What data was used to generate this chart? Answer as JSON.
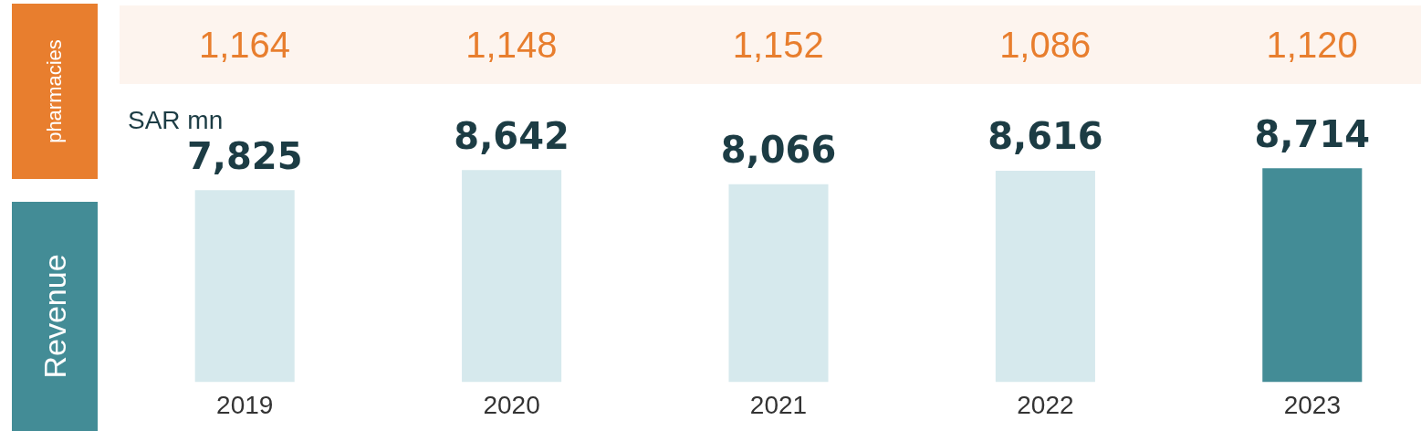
{
  "chart_data": [
    {
      "type": "other",
      "ylabel": "pharmacies",
      "values": [
        1164,
        1148,
        1152,
        1086,
        1120
      ],
      "value_labels": [
        "1,164",
        "1,148",
        "1,152",
        "1,086",
        "1,120"
      ],
      "color": "#e87e2e"
    },
    {
      "type": "bar",
      "title": "SAR mn",
      "ylabel": "Revenue",
      "categories": [
        "2019",
        "2020",
        "2021",
        "2022",
        "2023"
      ],
      "values": [
        7825,
        8642,
        8066,
        8616,
        8714
      ],
      "value_labels": [
        "7,825",
        "8,642",
        "8,066",
        "8,616",
        "8,714"
      ],
      "colors": [
        "#d6e9ed",
        "#d6e9ed",
        "#d6e9ed",
        "#d6e9ed",
        "#438c96"
      ],
      "grid": false,
      "legend": false
    }
  ]
}
